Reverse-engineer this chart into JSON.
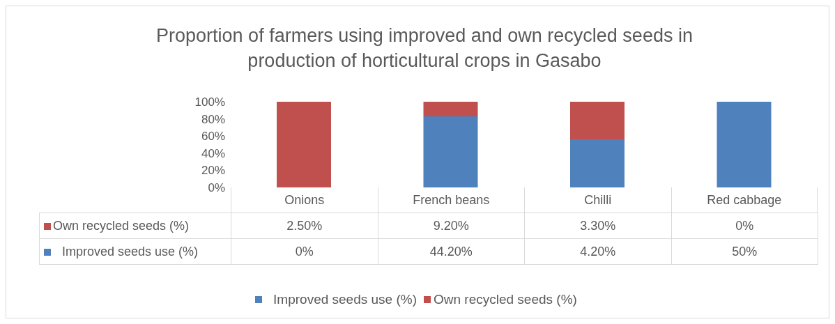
{
  "chart_data": {
    "type": "bar",
    "title": "Proportion of farmers using improved and own recycled seeds in production of horticultural crops in Gasabo",
    "categories": [
      "Onions",
      "French beans",
      "Chilli",
      "Red cabbage"
    ],
    "stacked": true,
    "ylim": [
      0,
      100
    ],
    "yticks": [
      {
        "value": 0,
        "label": "0%"
      },
      {
        "value": 20,
        "label": "20%"
      },
      {
        "value": 40,
        "label": "40%"
      },
      {
        "value": 60,
        "label": "60%"
      },
      {
        "value": 80,
        "label": "80%"
      },
      {
        "value": 100,
        "label": "100%"
      }
    ],
    "grid": false,
    "legend": "bottom",
    "series": [
      {
        "name": "Improved seeds use (%)",
        "color": "#4f81bd",
        "values": [
          0,
          83,
          56,
          100
        ]
      },
      {
        "name": "Own recycled seeds (%)",
        "color": "#c0504d",
        "values": [
          100,
          17,
          44,
          0
        ]
      }
    ],
    "annotations": [
      "2.50%",
      "9.20%",
      "3.30%",
      "0%",
      "0%",
      "44.20%",
      "4.20%",
      "50%"
    ]
  }
}
